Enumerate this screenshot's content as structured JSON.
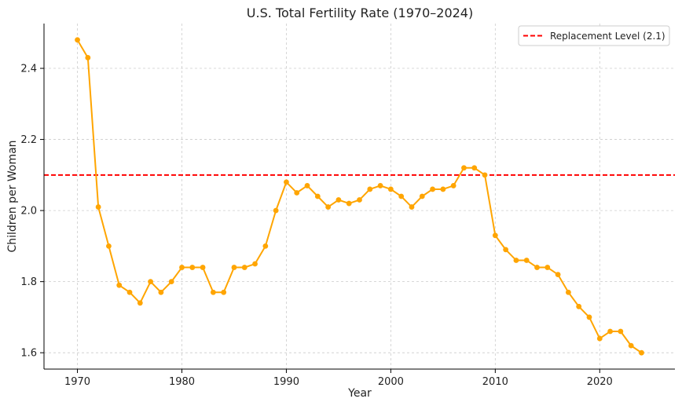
{
  "chart_data": {
    "type": "line",
    "title": "U.S. Total Fertility Rate (1970–2024)",
    "xlabel": "Year",
    "ylabel": "Children per Woman",
    "xlim": [
      1966.8,
      2027.2
    ],
    "ylim": [
      1.554,
      2.526
    ],
    "xticks": [
      1970,
      1980,
      1990,
      2000,
      2010,
      2020
    ],
    "yticks": [
      1.6,
      1.8,
      2.0,
      2.2,
      2.4
    ],
    "grid": true,
    "series": [
      {
        "name": "",
        "color": "#ffa500",
        "x": [
          1970,
          1971,
          1972,
          1973,
          1974,
          1975,
          1976,
          1977,
          1978,
          1979,
          1980,
          1981,
          1982,
          1983,
          1984,
          1985,
          1986,
          1987,
          1988,
          1989,
          1990,
          1991,
          1992,
          1993,
          1994,
          1995,
          1996,
          1997,
          1998,
          1999,
          2000,
          2001,
          2002,
          2003,
          2004,
          2005,
          2006,
          2007,
          2008,
          2009,
          2010,
          2011,
          2012,
          2013,
          2014,
          2015,
          2016,
          2017,
          2018,
          2019,
          2020,
          2021,
          2022,
          2023,
          2024
        ],
        "y": [
          2.48,
          2.43,
          2.01,
          1.9,
          1.79,
          1.77,
          1.74,
          1.8,
          1.77,
          1.8,
          1.84,
          1.84,
          1.84,
          1.77,
          1.77,
          1.84,
          1.84,
          1.85,
          1.9,
          2.0,
          2.08,
          2.05,
          2.07,
          2.04,
          2.01,
          2.03,
          2.02,
          2.03,
          2.06,
          2.07,
          2.06,
          2.04,
          2.01,
          2.04,
          2.06,
          2.06,
          2.07,
          2.12,
          2.12,
          2.1,
          1.93,
          1.89,
          1.86,
          1.86,
          1.84,
          1.84,
          1.82,
          1.77,
          1.73,
          1.7,
          1.64,
          1.66,
          1.66,
          1.62,
          1.6
        ]
      }
    ],
    "reference_line": {
      "label": "Replacement Level (2.1)",
      "y": 2.1,
      "color": "#ff0000",
      "style": "dashed"
    },
    "legend": {
      "position": "top-right"
    }
  }
}
